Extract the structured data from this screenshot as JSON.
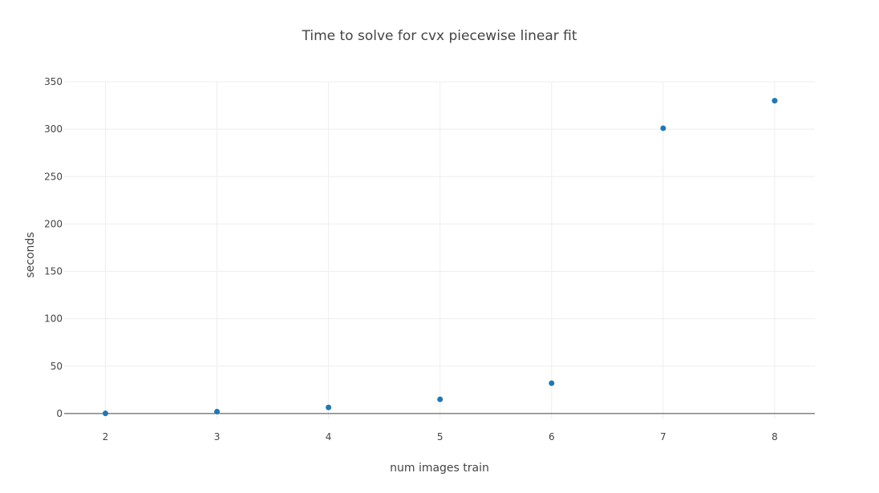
{
  "chart_data": {
    "type": "scatter",
    "title": "Time to solve for cvx piecewise linear fit",
    "xlabel": "num images train",
    "ylabel": "seconds",
    "x": [
      2,
      3,
      4,
      5,
      6,
      7,
      8
    ],
    "y": [
      0.2,
      2,
      6.5,
      15,
      32,
      301,
      330
    ],
    "xlim": [
      1.63,
      8.36
    ],
    "ylim": [
      -6,
      350
    ],
    "xticks": [
      2,
      3,
      4,
      5,
      6,
      7,
      8
    ],
    "yticks": [
      0,
      50,
      100,
      150,
      200,
      250,
      300,
      350
    ],
    "marker_color": "#1f77b4",
    "grid": true,
    "legend": "none"
  }
}
